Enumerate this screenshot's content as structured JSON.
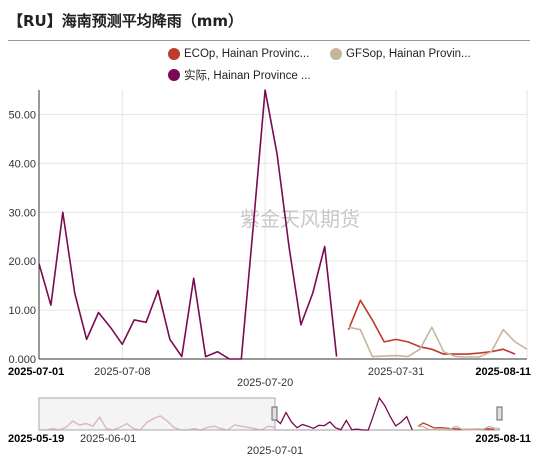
{
  "title": "【RU】海南预测平均降雨（mm）",
  "watermark": "紫金天风期货",
  "legend": [
    {
      "label": "ECOp, Hainan Provinc...",
      "color": "#c0392b"
    },
    {
      "label": "GFSop, Hainan Provin...",
      "color": "#c5b5a0"
    },
    {
      "label": "实际, Hainan Province ...",
      "color": "#7b0a52"
    }
  ],
  "chart_data": {
    "type": "line",
    "title": "【RU】海南预测平均降雨（mm）",
    "xlabel": "",
    "ylabel": "",
    "ylim": [
      0,
      55
    ],
    "yticks": [
      "0.000",
      "10.00",
      "20.00",
      "30.00",
      "40.00",
      "50.00"
    ],
    "xlim_days": [
      0,
      41
    ],
    "xticks": [
      {
        "label": "2025-07-01",
        "day": 0,
        "bold": true,
        "row": 1
      },
      {
        "label": "2025-07-08",
        "day": 7,
        "bold": false,
        "row": 1
      },
      {
        "label": "2025-07-20",
        "day": 19,
        "bold": false,
        "row": 2
      },
      {
        "label": "2025-07-31",
        "day": 30,
        "bold": false,
        "row": 1
      },
      {
        "label": "2025-08-11",
        "day": 41,
        "bold": true,
        "row": 1
      }
    ],
    "grid": true,
    "series": [
      {
        "name": "实际, Hainan Province ...",
        "color": "#7b0a52",
        "start": "2025-07-01",
        "values": [
          19.5,
          11,
          30,
          13.5,
          4,
          9.5,
          6.5,
          3,
          8,
          7.5,
          14,
          4,
          0.5,
          16.5,
          0.5,
          1.5,
          0,
          0,
          27,
          55,
          42,
          23,
          7,
          13.5,
          23,
          0.5
        ]
      },
      {
        "name": "ECOp, Hainan Provinc...",
        "color": "#c0392b",
        "start": "2025-07-27",
        "values": [
          6,
          12,
          8,
          3.5,
          4,
          3.5,
          2.5,
          2,
          1,
          1,
          1,
          1.2,
          1.5,
          2,
          1
        ]
      },
      {
        "name": "GFSop, Hainan Provin...",
        "color": "#c5b5a0",
        "start": "2025-07-27",
        "values": [
          6.5,
          6,
          0.5,
          0.6,
          0.7,
          0.5,
          2,
          6.5,
          1.5,
          0.5,
          0.4,
          0.4,
          1.5,
          6,
          3.5,
          2
        ]
      }
    ],
    "navigator": {
      "start_label": "2025-05-19",
      "mid_label": "2025-06-01",
      "center_label": "2025-07-01",
      "end_label": "2025-08-11"
    }
  }
}
